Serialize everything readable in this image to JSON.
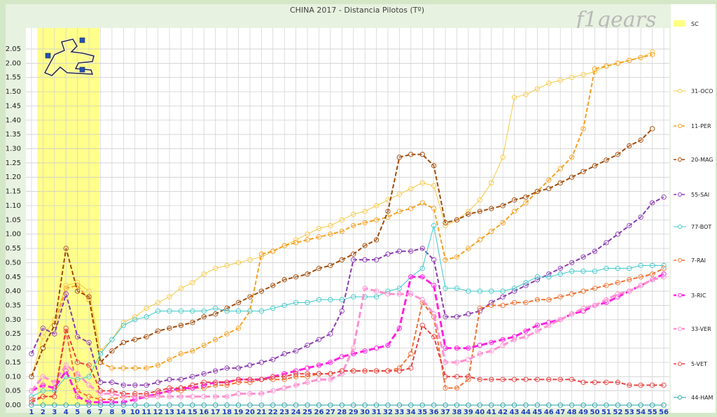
{
  "chart_data": {
    "type": "line",
    "title": "CHINA 2017 - Distancia Pilotos (Tº)",
    "watermark": "f1gears",
    "x": [
      1,
      2,
      3,
      4,
      5,
      6,
      7,
      8,
      9,
      10,
      11,
      12,
      13,
      14,
      15,
      16,
      17,
      18,
      19,
      20,
      21,
      22,
      23,
      24,
      25,
      26,
      27,
      28,
      29,
      30,
      31,
      32,
      33,
      34,
      35,
      36,
      37,
      38,
      39,
      40,
      41,
      42,
      43,
      44,
      45,
      46,
      47,
      48,
      49,
      50,
      51,
      52,
      53,
      54,
      55,
      56
    ],
    "y_ticks": [
      "0.00",
      "0.05",
      "0.10",
      "0.15",
      "0.20",
      "0.25",
      "0.30",
      "0.35",
      "0.40",
      "0.45",
      "0.50",
      "0.55",
      "1.00",
      "1.05",
      "1.10",
      "1.15",
      "1.20",
      "1.25",
      "1.30",
      "1.35",
      "1.40",
      "1.45",
      "1.50",
      "1.55",
      "2.00",
      "2.05"
    ],
    "ylim": [
      0,
      128
    ],
    "safety_car_laps": [
      1,
      6
    ],
    "legend": [
      "SC",
      "31-OCO",
      "11-PER",
      "20-MAG",
      "55-SAI",
      "77-BOT",
      "7-RAI",
      "3-RIC",
      "33-VER",
      "5-VET",
      "44-HAM"
    ],
    "colors": {
      "sc": "#ffff80",
      "oco": "#f5c842",
      "per": "#f5a020",
      "mag": "#a04a08",
      "sai": "#8a3ab0",
      "bot": "#3cc8c8",
      "rai": "#f07030",
      "ric": "#ff20e0",
      "ver": "#ff90d0",
      "vet": "#e84040",
      "ham": "#20a0a0"
    },
    "series": [
      {
        "name": "31-OCO",
        "color": "#f5c842",
        "width": 1,
        "dashed": false,
        "values": [
          10,
          24,
          30,
          42,
          43,
          40,
          19,
          23,
          29,
          31,
          34,
          36,
          38,
          41,
          43,
          46,
          48,
          49,
          50,
          51,
          52,
          54,
          56,
          58,
          60,
          62,
          63,
          65,
          67,
          68,
          70,
          72,
          74,
          76,
          78,
          77,
          63,
          65,
          68,
          72,
          78,
          87,
          108,
          109,
          111,
          113,
          114,
          115,
          116,
          117,
          119,
          120,
          121,
          122,
          124,
          "null"
        ]
      },
      {
        "name": "11-PER",
        "color": "#f5a020",
        "width": 2,
        "dashed": true,
        "values": [
          10,
          20,
          28,
          41,
          42,
          37,
          15,
          13,
          13,
          13,
          13,
          14,
          16,
          18,
          19,
          21,
          23,
          25,
          27,
          33,
          53,
          54,
          56,
          57,
          58,
          59,
          60,
          61,
          63,
          64,
          65,
          66,
          68,
          69,
          71,
          69,
          51,
          52,
          55,
          58,
          61,
          64,
          68,
          71,
          75,
          79,
          83,
          87,
          97,
          118,
          119,
          120,
          121,
          122,
          123,
          "null"
        ]
      },
      {
        "name": "20-MAG",
        "color": "#a04a08",
        "width": 2,
        "dashed": true,
        "values": [
          10,
          20,
          28,
          55,
          40,
          38,
          15,
          19,
          22,
          23,
          24,
          26,
          27,
          28,
          29,
          31,
          32,
          34,
          36,
          38,
          40,
          42,
          44,
          45,
          46,
          48,
          49,
          51,
          53,
          56,
          58,
          68,
          87,
          88,
          88,
          84,
          64,
          65,
          67,
          68,
          69,
          70,
          72,
          73,
          75,
          76,
          78,
          80,
          82,
          84,
          86,
          88,
          91,
          93,
          97,
          "null"
        ]
      },
      {
        "name": "55-SAI",
        "color": "#8a3ab0",
        "width": 2,
        "dashed": true,
        "values": [
          18,
          27,
          25,
          39,
          24,
          22,
          8,
          8,
          7,
          7,
          7,
          8,
          9,
          9,
          10,
          11,
          12,
          13,
          13,
          14,
          15,
          16,
          18,
          19,
          21,
          23,
          25,
          33,
          51,
          51,
          51,
          53,
          54,
          54,
          55,
          51,
          31,
          31,
          32,
          33,
          36,
          38,
          40,
          42,
          44,
          46,
          48,
          50,
          52,
          54,
          57,
          60,
          63,
          66,
          71,
          73
        ]
      },
      {
        "name": "77-BOT",
        "color": "#3cc8c8",
        "width": 1,
        "dashed": false,
        "values": [
          3,
          5,
          5,
          10,
          9,
          10,
          18,
          23,
          28,
          30,
          31,
          33,
          33,
          33,
          33,
          33,
          34,
          33,
          33,
          33,
          33,
          34,
          35,
          36,
          36,
          37,
          37,
          37,
          38,
          38,
          38,
          40,
          41,
          45,
          48,
          63,
          41,
          41,
          40,
          40,
          40,
          40,
          41,
          43,
          45,
          45,
          46,
          47,
          47,
          47,
          48,
          48,
          48,
          49,
          49,
          49
        ]
      },
      {
        "name": "7-RAI",
        "color": "#f07030",
        "width": 2,
        "dashed": true,
        "values": [
          2,
          3,
          3,
          26,
          5,
          3,
          2,
          2,
          3,
          3,
          3,
          4,
          5,
          5,
          6,
          6,
          7,
          7,
          8,
          8,
          9,
          9,
          9,
          10,
          10,
          11,
          11,
          12,
          12,
          12,
          12,
          12,
          13,
          18,
          36,
          31,
          6,
          6,
          9,
          34,
          35,
          35,
          36,
          36,
          37,
          37,
          38,
          39,
          40,
          41,
          42,
          43,
          44,
          45,
          46,
          48
        ]
      },
      {
        "name": "3-RIC",
        "color": "#ff20e0",
        "width": 3,
        "dashed": true,
        "values": [
          5,
          7,
          6,
          12,
          3,
          1,
          1,
          1,
          1,
          2,
          3,
          4,
          5,
          6,
          6,
          7,
          8,
          8,
          9,
          9,
          9,
          10,
          11,
          12,
          13,
          14,
          15,
          17,
          18,
          19,
          20,
          21,
          27,
          45,
          45,
          42,
          20,
          20,
          20,
          21,
          22,
          23,
          24,
          26,
          28,
          29,
          30,
          32,
          33,
          35,
          36,
          38,
          40,
          42,
          44,
          46
        ]
      },
      {
        "name": "33-VER",
        "color": "#ff90d0",
        "width": 3,
        "dashed": true,
        "values": [
          5,
          10,
          8,
          14,
          11,
          7,
          4,
          4,
          3,
          3,
          3,
          3,
          3,
          3,
          3,
          3,
          3,
          3,
          4,
          4,
          4,
          5,
          6,
          7,
          8,
          9,
          9,
          11,
          20,
          41,
          40,
          39,
          39,
          39,
          37,
          32,
          15,
          15,
          16,
          18,
          19,
          21,
          23,
          24,
          26,
          28,
          30,
          32,
          34,
          35,
          37,
          39,
          40,
          42,
          44,
          45
        ]
      },
      {
        "name": "5-VET",
        "color": "#e84040",
        "width": 2,
        "dashed": true,
        "values": [
          1,
          3,
          3,
          27,
          15,
          14,
          5,
          5,
          4,
          4,
          4,
          5,
          6,
          6,
          7,
          8,
          8,
          8,
          9,
          9,
          9,
          10,
          10,
          11,
          11,
          11,
          11,
          12,
          12,
          12,
          12,
          12,
          12,
          13,
          28,
          24,
          10,
          10,
          10,
          9,
          9,
          9,
          9,
          9,
          9,
          9,
          9,
          9,
          8,
          8,
          8,
          8,
          7,
          7,
          7,
          7
        ]
      },
      {
        "name": "44-HAM",
        "color": "#20a0a0",
        "width": 1,
        "dashed": false,
        "values": [
          0,
          0,
          0,
          0,
          0,
          0,
          0,
          0,
          0,
          0,
          0,
          0,
          0,
          0,
          0,
          0,
          0,
          0,
          0,
          0,
          0,
          0,
          0,
          0,
          0,
          0,
          0,
          0,
          0,
          0,
          0,
          0,
          0,
          0,
          0,
          0,
          0,
          0,
          0,
          0,
          0,
          0,
          0,
          0,
          0,
          0,
          0,
          0,
          0,
          0,
          0,
          0,
          0,
          0,
          0,
          0
        ]
      }
    ]
  }
}
